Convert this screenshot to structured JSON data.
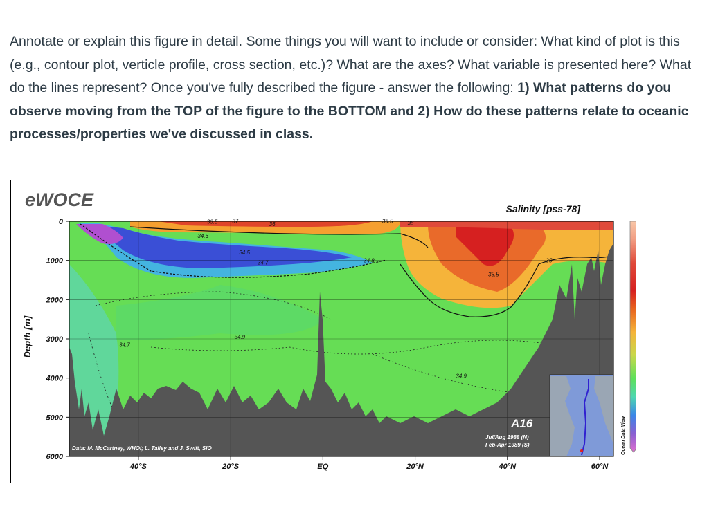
{
  "question": {
    "intro": "Annotate or explain this figure in detail. Some things you will want to include or consider: What kind of plot is this (e.g., contour plot, verticle profile, cross section, etc.)? What are the axes? What variable is presented here? What do the lines represent? Once you've fully described the figure - answer the following: ",
    "bold": "1) What patterns do you observe moving from the TOP of the figure to the BOTTOM and 2) How do these patterns relate to oceanic processes/properties we've discussed in class."
  },
  "figure": {
    "logo": "eWOCE",
    "title": "Salinity [pss-78]",
    "ylabel": "Depth [m]",
    "credit": "Data: M. McCartney, WHOI; L. Talley and J. Swift, SIO",
    "section_name": "A16",
    "cruise_line1": "Jul/Aug 1988 (N)",
    "cruise_line2": "Feb-Apr 1989 (S)",
    "software": "Ocean Data View",
    "colors": {
      "land": "#555555",
      "deep_water": "#66dd55",
      "fresh_core": "#3a4fd6",
      "salty_core": "#e0452a"
    }
  },
  "chart_data": {
    "type": "heatmap",
    "title": "Salinity [pss-78]",
    "ylabel": "Depth [m]",
    "x_ticks": [
      "40°S",
      "20°S",
      "EQ",
      "20°N",
      "40°N",
      "60°N"
    ],
    "x_tick_values": [
      -40,
      -20,
      0,
      20,
      40,
      60
    ],
    "xlim": [
      -55,
      63
    ],
    "y_ticks": [
      0,
      1000,
      2000,
      3000,
      4000,
      5000,
      6000
    ],
    "ylim": [
      6000,
      0
    ],
    "colorbar": {
      "ticks": [
        37,
        36.5,
        36,
        35.5,
        35,
        34.5,
        34
      ],
      "range": [
        33.9,
        37.2
      ]
    },
    "contour_labels": [
      {
        "text": "36.5",
        "lat": -24,
        "depth": 60
      },
      {
        "text": "37",
        "lat": -19,
        "depth": 40
      },
      {
        "text": "36",
        "lat": -11,
        "depth": 120
      },
      {
        "text": "36.5",
        "lat": 14,
        "depth": 40
      },
      {
        "text": "36",
        "lat": 19,
        "depth": 100
      },
      {
        "text": "34.6",
        "lat": -26,
        "depth": 420
      },
      {
        "text": "34.5",
        "lat": -17,
        "depth": 850
      },
      {
        "text": "34.7",
        "lat": -13,
        "depth": 1100
      },
      {
        "text": "34.8",
        "lat": 10,
        "depth": 1050
      },
      {
        "text": "35.5",
        "lat": 37,
        "depth": 1400
      },
      {
        "text": "35",
        "lat": 49,
        "depth": 1050
      },
      {
        "text": "34.9",
        "lat": -18,
        "depth": 3000
      },
      {
        "text": "34.7",
        "lat": -43,
        "depth": 3200
      },
      {
        "text": "34.9",
        "lat": 30,
        "depth": 4000
      }
    ]
  }
}
